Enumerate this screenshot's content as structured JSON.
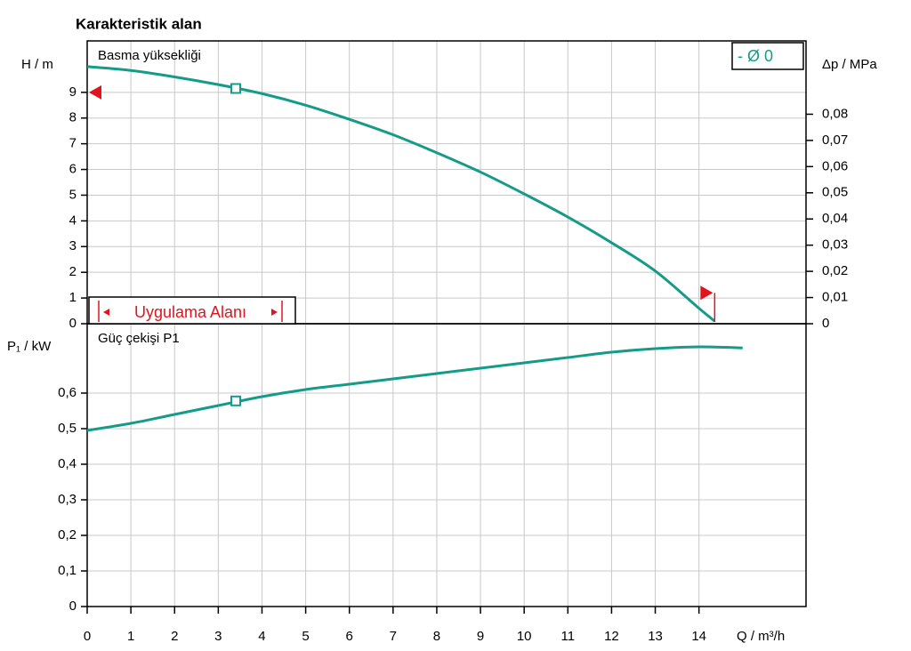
{
  "chart_data": [
    {
      "type": "line",
      "title": "Karakteristik alan",
      "panel_label": "Basma yüksekliği",
      "ylabel": "H / m",
      "y2label": "Δp / MPa",
      "x": [
        0,
        1,
        2,
        3,
        4,
        5,
        6,
        7,
        8,
        9,
        10,
        11,
        12,
        13,
        14,
        14.36
      ],
      "series": [
        {
          "name": "- Ø 0",
          "color": "#159b88",
          "values": [
            10.0,
            9.85,
            9.6,
            9.3,
            8.95,
            8.5,
            7.95,
            7.35,
            6.65,
            5.9,
            5.05,
            4.15,
            3.15,
            2.05,
            0.6,
            0.1
          ]
        }
      ],
      "operating_point": {
        "x": 3.4,
        "y": 9.15
      },
      "markers": [
        {
          "x": 0,
          "y": 9,
          "color": "#e0141e"
        },
        {
          "x": 14.36,
          "y": 1.2,
          "color": "#e0141e"
        }
      ],
      "annotation": "Uygulama Alanı",
      "xlim": [
        0,
        16.45
      ],
      "ylim": [
        0,
        11
      ],
      "yticks": [
        0,
        1,
        2,
        3,
        4,
        5,
        6,
        7,
        8,
        9
      ],
      "y2lim": [
        0,
        0.108
      ],
      "y2ticks": [
        0,
        {
          "value": 0.01,
          "label": "0,01"
        },
        {
          "value": 0.02,
          "label": "0,02"
        },
        {
          "value": 0.03,
          "label": "0,03"
        },
        {
          "value": 0.04,
          "label": "0,04"
        },
        {
          "value": 0.05,
          "label": "0,05"
        },
        {
          "value": 0.06,
          "label": "0,06"
        },
        {
          "value": 0.07,
          "label": "0,07"
        },
        {
          "value": 0.08,
          "label": "0,08"
        }
      ],
      "grid": true
    },
    {
      "type": "line",
      "panel_label": "Güç çekişi P1",
      "ylabel": "P₁ / kW",
      "xlabel": "Q / m³/h",
      "x": [
        0,
        1,
        2,
        3,
        4,
        5,
        6,
        7,
        8,
        9,
        10,
        11,
        12,
        13,
        14,
        15
      ],
      "series": [
        {
          "name": "- Ø 0",
          "color": "#159b88",
          "values": [
            0.495,
            0.515,
            0.54,
            0.565,
            0.59,
            0.61,
            0.625,
            0.64,
            0.655,
            0.67,
            0.685,
            0.7,
            0.715,
            0.725,
            0.73,
            0.727
          ]
        }
      ],
      "operating_point": {
        "x": 3.4,
        "y": 0.578
      },
      "xlim": [
        0,
        16.45
      ],
      "xticks": [
        0,
        1,
        2,
        3,
        4,
        5,
        6,
        7,
        8,
        9,
        10,
        11,
        12,
        13,
        14
      ],
      "ylim": [
        0,
        0.795
      ],
      "yticks": [
        0,
        {
          "value": 0.1,
          "label": "0,1"
        },
        {
          "value": 0.2,
          "label": "0,2"
        },
        {
          "value": 0.3,
          "label": "0,3"
        },
        {
          "value": 0.4,
          "label": "0,4"
        },
        {
          "value": 0.5,
          "label": "0,5"
        },
        {
          "value": 0.6,
          "label": "0,6"
        }
      ],
      "grid": true
    }
  ]
}
